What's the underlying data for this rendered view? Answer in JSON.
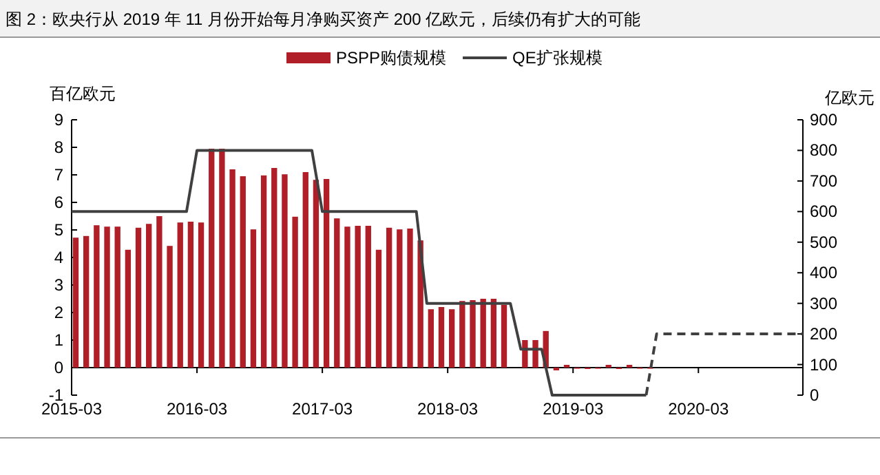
{
  "chart_data": {
    "type": "bar",
    "title": "图 2：欧央行从 2019 年 11 月份开始每月净购买资产 200 亿欧元，后续仍有扩大的可能",
    "ylabel": "百亿欧元",
    "y2label": "亿欧元",
    "x": [
      "2015-03",
      "2015-04",
      "2015-05",
      "2015-06",
      "2015-07",
      "2015-08",
      "2015-09",
      "2015-10",
      "2015-11",
      "2015-12",
      "2016-01",
      "2016-02",
      "2016-03",
      "2016-04",
      "2016-05",
      "2016-06",
      "2016-07",
      "2016-08",
      "2016-09",
      "2016-10",
      "2016-11",
      "2016-12",
      "2017-01",
      "2017-02",
      "2017-03",
      "2017-04",
      "2017-05",
      "2017-06",
      "2017-07",
      "2017-08",
      "2017-09",
      "2017-10",
      "2017-11",
      "2017-12",
      "2018-01",
      "2018-02",
      "2018-03",
      "2018-04",
      "2018-05",
      "2018-06",
      "2018-07",
      "2018-08",
      "2018-09",
      "2018-10",
      "2018-11",
      "2018-12",
      "2019-01",
      "2019-02",
      "2019-03",
      "2019-04",
      "2019-05",
      "2019-06",
      "2019-07",
      "2019-08",
      "2019-09",
      "2019-10"
    ],
    "series": [
      {
        "name": "PSPP购债规模",
        "color": "#b01e28",
        "values": [
          4.72,
          4.78,
          5.17,
          5.12,
          5.12,
          4.28,
          5.08,
          5.22,
          5.5,
          4.42,
          5.27,
          5.3,
          5.27,
          7.95,
          7.95,
          7.2,
          6.95,
          5.02,
          6.98,
          7.25,
          7.02,
          5.48,
          7.1,
          6.82,
          6.85,
          5.42,
          5.12,
          5.15,
          5.15,
          4.28,
          5.08,
          5.02,
          5.05,
          4.62,
          2.12,
          2.2,
          2.12,
          2.42,
          2.45,
          2.5,
          2.5,
          2.28,
          null,
          1.0,
          1.0,
          1.33,
          -0.1,
          0.1,
          0,
          -0.05,
          0,
          0.1,
          -0.05,
          0.1,
          0,
          0
        ]
      },
      {
        "name": "QE扩张规模",
        "type": "line",
        "axis": "y2",
        "color": "#404040",
        "line_style": "solid",
        "x": [
          "2015-03",
          "2016-02",
          "2016-03",
          "2017-02",
          "2017-03",
          "2017-12",
          "2018-01",
          "2018-09",
          "2018-10",
          "2018-12",
          "2019-01",
          "2019-10"
        ],
        "values": [
          600,
          600,
          800,
          800,
          600,
          600,
          300,
          300,
          150,
          150,
          0,
          0
        ]
      },
      {
        "type": "line",
        "axis": "y2",
        "color": "#404040",
        "line_style": "dashed",
        "x": [
          "2019-10",
          "2019-11",
          "2021-01"
        ],
        "values": [
          0,
          200,
          200
        ]
      }
    ],
    "xlim": [
      "2015-03",
      "2021-01"
    ],
    "xticks": [
      "2015-03",
      "2016-03",
      "2017-03",
      "2018-03",
      "2019-03",
      "2020-03"
    ],
    "ylim": [
      -1,
      9
    ],
    "yticks": [
      -1,
      0,
      1,
      2,
      3,
      4,
      5,
      6,
      7,
      8,
      9
    ],
    "y2lim": [
      0,
      900
    ],
    "y2ticks": [
      0,
      100,
      200,
      300,
      400,
      500,
      600,
      700,
      800,
      900
    ],
    "legend": "top",
    "grid": false
  }
}
